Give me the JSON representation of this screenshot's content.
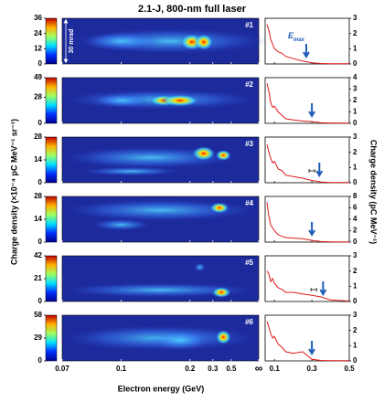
{
  "title": "2.1-J, 800-nm full laser",
  "left_axis_label": "Charge density (×10⁻⁴ pC MeV⁻¹ sr⁻¹)",
  "right_axis_label": "Charge density (pC MeV⁻¹)",
  "x_axis_label": "Electron energy (GeV)",
  "divergence_label": "30 mrad",
  "emax_label": "E",
  "emax_sub": "max",
  "image_xscale": "inverse",
  "image_xticks": [
    0.07,
    0.1,
    0.2,
    0.3,
    0.5,
    {
      "value": null,
      "label": "∞"
    }
  ],
  "spectrum_xlim": [
    0.05,
    0.5
  ],
  "spectrum_xticks": [
    0.1,
    0.3,
    0.5
  ],
  "line_color": "#e01818",
  "arrow_color": "#1f5cb8",
  "rows": [
    {
      "label": "#1",
      "clim": [
        0,
        36
      ],
      "cticks": [
        0,
        12,
        24,
        36
      ],
      "ylim": [
        0,
        3
      ],
      "yticks": [
        0,
        1,
        2,
        3
      ],
      "x": [
        0.06,
        0.07,
        0.08,
        0.09,
        0.1,
        0.12,
        0.14,
        0.16,
        0.2,
        0.25,
        0.3,
        0.35,
        0.4,
        0.5
      ],
      "values": [
        2.6,
        2.2,
        1.6,
        1.3,
        1.0,
        0.8,
        0.7,
        0.5,
        0.35,
        0.2,
        0.08,
        0.03,
        0.02,
        0.01
      ],
      "emax": 0.27
    },
    {
      "label": "#2",
      "clim": [
        0,
        49
      ],
      "cticks": [
        0,
        28,
        49
      ],
      "ylim": [
        0,
        4
      ],
      "yticks": [
        0,
        1,
        2,
        3,
        4
      ],
      "x": [
        0.06,
        0.07,
        0.08,
        0.09,
        0.1,
        0.12,
        0.14,
        0.16,
        0.2,
        0.25,
        0.3,
        0.35,
        0.4,
        0.5
      ],
      "values": [
        3.5,
        2.8,
        1.8,
        1.4,
        1.5,
        1.0,
        0.7,
        0.4,
        0.3,
        0.2,
        0.15,
        0.05,
        0.03,
        0.02
      ],
      "emax": 0.3
    },
    {
      "label": "#3",
      "clim": [
        0,
        28
      ],
      "cticks": [
        0,
        14,
        28
      ],
      "ylim": [
        0,
        3
      ],
      "yticks": [
        0,
        1,
        2,
        3
      ],
      "x": [
        0.06,
        0.07,
        0.08,
        0.09,
        0.1,
        0.12,
        0.14,
        0.16,
        0.2,
        0.25,
        0.3,
        0.35,
        0.4,
        0.5
      ],
      "values": [
        2.5,
        2.0,
        1.6,
        1.3,
        1.4,
        0.9,
        0.8,
        0.5,
        0.4,
        0.3,
        0.15,
        0.05,
        0.02,
        0.01
      ],
      "emax": 0.34,
      "error_bar": {
        "x": 0.3,
        "err": 0.015
      }
    },
    {
      "label": "#4",
      "clim": [
        0,
        28
      ],
      "cticks": [
        0,
        14,
        28
      ],
      "ylim": [
        0,
        8
      ],
      "yticks": [
        0,
        2,
        4,
        6,
        8
      ],
      "x": [
        0.06,
        0.07,
        0.08,
        0.09,
        0.1,
        0.12,
        0.14,
        0.16,
        0.2,
        0.25,
        0.3,
        0.35,
        0.4,
        0.5
      ],
      "values": [
        7.0,
        4.5,
        3.0,
        2.5,
        2.0,
        1.3,
        1.0,
        0.8,
        0.7,
        0.6,
        0.3,
        0.1,
        0.05,
        0.02
      ],
      "emax": 0.3
    },
    {
      "label": "#5",
      "clim": [
        0,
        42
      ],
      "cticks": [
        0,
        21,
        42
      ],
      "ylim": [
        0,
        3
      ],
      "yticks": [
        0,
        1,
        2,
        3
      ],
      "x": [
        0.06,
        0.07,
        0.08,
        0.09,
        0.1,
        0.12,
        0.14,
        0.16,
        0.2,
        0.25,
        0.3,
        0.35,
        0.4,
        0.5
      ],
      "values": [
        2.0,
        1.8,
        1.3,
        1.5,
        1.2,
        0.9,
        0.8,
        0.6,
        0.6,
        0.5,
        0.4,
        0.3,
        0.1,
        0.03
      ],
      "emax": 0.36,
      "error_bar": {
        "x": 0.31,
        "err": 0.015
      }
    },
    {
      "label": "#6",
      "clim": [
        0,
        58
      ],
      "cticks": [
        0,
        29,
        58
      ],
      "ylim": [
        0,
        3
      ],
      "yticks": [
        0,
        1,
        2,
        3
      ],
      "x": [
        0.06,
        0.07,
        0.08,
        0.09,
        0.1,
        0.12,
        0.14,
        0.16,
        0.2,
        0.25,
        0.3,
        0.35,
        0.4,
        0.5
      ],
      "values": [
        2.6,
        2.2,
        1.8,
        1.5,
        1.6,
        1.1,
        0.9,
        0.6,
        0.5,
        0.6,
        0.1,
        0.03,
        0.02,
        0.01
      ],
      "emax": 0.3
    }
  ]
}
